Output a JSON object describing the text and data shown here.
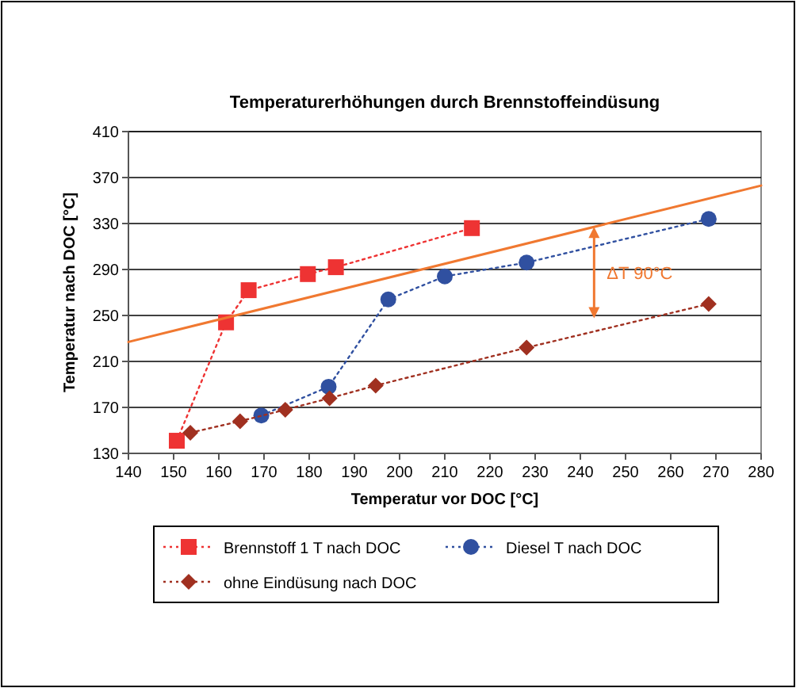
{
  "chart_data": {
    "type": "line",
    "title": "Temperaturerhöhungen durch Brennstoffeindüsung",
    "xlabel": "Temperatur vor DOC [°C]",
    "ylabel": "Temperatur nach DOC [°C]",
    "xlim": [
      140,
      280
    ],
    "xticks": [
      140,
      150,
      160,
      170,
      180,
      190,
      200,
      210,
      220,
      230,
      240,
      250,
      260,
      270,
      280
    ],
    "ylim": [
      130,
      410
    ],
    "yticks": [
      130,
      170,
      210,
      250,
      290,
      330,
      370,
      410
    ],
    "grid": "y",
    "legend": "bottom",
    "line_style": "dotted",
    "series": [
      {
        "name": "Brennstoff 1 T nach DOC",
        "color": "#ee3333",
        "marker": "square",
        "x": [
          150.7,
          161.6,
          166.6,
          179.7,
          185.9,
          216
        ],
        "values": [
          141,
          244,
          272,
          286,
          292,
          326
        ]
      },
      {
        "name": "Diesel T nach DOC",
        "color": "#3050a0",
        "marker": "circle",
        "x": [
          169.4,
          184.3,
          197.5,
          210,
          228.1,
          268.4
        ],
        "values": [
          163,
          188,
          264,
          284,
          296,
          334
        ]
      },
      {
        "name": "ohne Eindüsung nach DOC",
        "color": "#a03020",
        "marker": "diamond",
        "x": [
          153.7,
          164.7,
          174.7,
          184.5,
          194.7,
          228.1,
          268.4
        ],
        "values": [
          148,
          158,
          168,
          178,
          189,
          222,
          260
        ]
      },
      {
        "type": "line",
        "color": "#f07830",
        "marker": "none",
        "line_style": "solid",
        "x": [
          140,
          280
        ],
        "values": [
          227,
          363
        ]
      }
    ],
    "annotations": [
      "ΔT 90°C"
    ]
  }
}
